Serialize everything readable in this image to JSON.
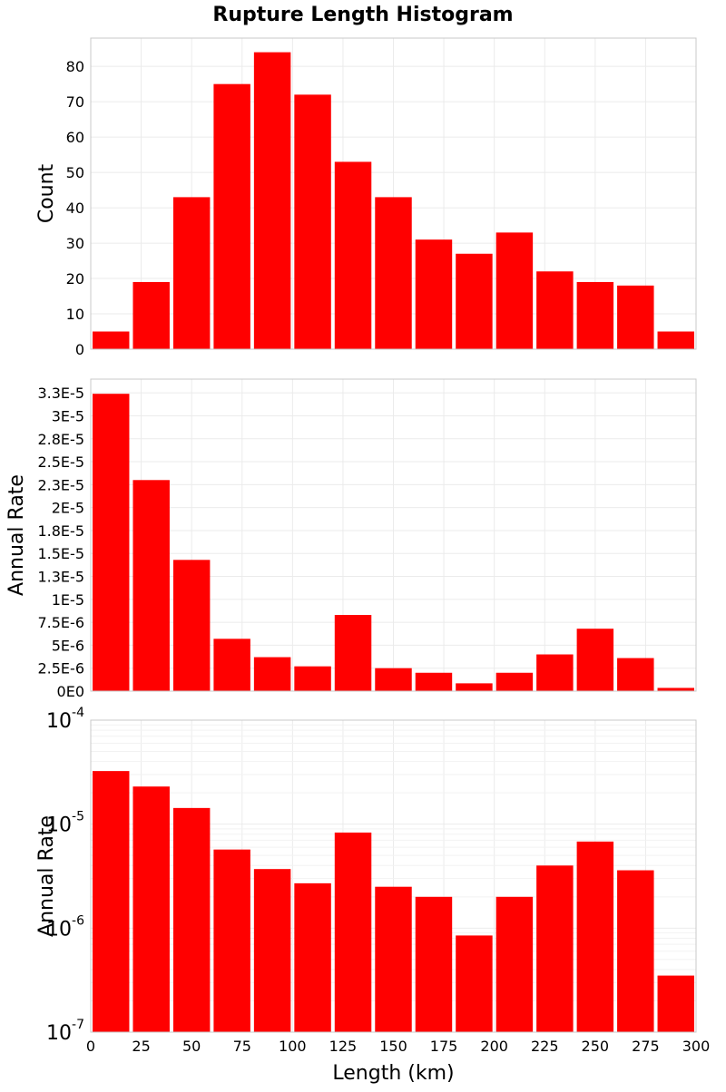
{
  "title": "Rupture Length Histogram",
  "colors": {
    "bar": "#ff0000",
    "frame": "#c8c8c8",
    "grid": "#ebebeb"
  },
  "chart_data": [
    {
      "type": "bar",
      "panel": "count",
      "title": "Rupture Length Histogram",
      "xlabel": "",
      "ylabel": "Count",
      "x": [
        10,
        30,
        50,
        70,
        90,
        110,
        130,
        150,
        170,
        190,
        210,
        230,
        250,
        270,
        290
      ],
      "bin_width": 20,
      "values": [
        5,
        19,
        43,
        75,
        84,
        72,
        53,
        43,
        31,
        27,
        33,
        22,
        19,
        18,
        5
      ],
      "xlim": [
        0,
        300
      ],
      "ylim": [
        0,
        88
      ],
      "scale": "linear",
      "yticks": [
        {
          "value": 0,
          "label": "0"
        },
        {
          "value": 10,
          "label": "10"
        },
        {
          "value": 20,
          "label": "20"
        },
        {
          "value": 30,
          "label": "30"
        },
        {
          "value": 40,
          "label": "40"
        },
        {
          "value": 50,
          "label": "50"
        },
        {
          "value": 60,
          "label": "60"
        },
        {
          "value": 70,
          "label": "70"
        },
        {
          "value": 80,
          "label": "80"
        }
      ],
      "grid": true
    },
    {
      "type": "bar",
      "panel": "rate-linear",
      "xlabel": "",
      "ylabel": "Annual Rate",
      "x": [
        10,
        30,
        50,
        70,
        90,
        110,
        130,
        150,
        170,
        190,
        210,
        230,
        250,
        270,
        290
      ],
      "bin_width": 20,
      "values": [
        3.24e-05,
        2.3e-05,
        1.43e-05,
        5.7e-06,
        3.7e-06,
        2.7e-06,
        8.3e-06,
        2.5e-06,
        2e-06,
        8.5e-07,
        2e-06,
        4e-06,
        6.8e-06,
        3.6e-06,
        3.5e-07
      ],
      "xlim": [
        0,
        300
      ],
      "ylim": [
        0,
        3.4e-05
      ],
      "scale": "linear",
      "yticks": [
        {
          "value": 0,
          "label": "0E0"
        },
        {
          "value": 2.5e-06,
          "label": "2.5E-6"
        },
        {
          "value": 5e-06,
          "label": "5E-6"
        },
        {
          "value": 7.5e-06,
          "label": "7.5E-6"
        },
        {
          "value": 1e-05,
          "label": "1E-5"
        },
        {
          "value": 1.25e-05,
          "label": "1.3E-5"
        },
        {
          "value": 1.5e-05,
          "label": "1.5E-5"
        },
        {
          "value": 1.75e-05,
          "label": "1.8E-5"
        },
        {
          "value": 2e-05,
          "label": "2E-5"
        },
        {
          "value": 2.25e-05,
          "label": "2.3E-5"
        },
        {
          "value": 2.5e-05,
          "label": "2.5E-5"
        },
        {
          "value": 2.75e-05,
          "label": "2.8E-5"
        },
        {
          "value": 3e-05,
          "label": "3E-5"
        },
        {
          "value": 3.25e-05,
          "label": "3.3E-5"
        }
      ],
      "grid": true
    },
    {
      "type": "bar",
      "panel": "rate-log",
      "xlabel": "Length (km)",
      "ylabel": "Annual Rate",
      "x": [
        10,
        30,
        50,
        70,
        90,
        110,
        130,
        150,
        170,
        190,
        210,
        230,
        250,
        270,
        290
      ],
      "bin_width": 20,
      "values": [
        3.24e-05,
        2.3e-05,
        1.43e-05,
        5.7e-06,
        3.7e-06,
        2.7e-06,
        8.3e-06,
        2.5e-06,
        2e-06,
        8.5e-07,
        2e-06,
        4e-06,
        6.8e-06,
        3.6e-06,
        3.5e-07
      ],
      "xlim": [
        0,
        300
      ],
      "ylim": [
        1e-07,
        0.0001
      ],
      "scale": "log",
      "yticks": [
        {
          "value": 1e-07,
          "base": "10",
          "exp": "-7"
        },
        {
          "value": 1e-06,
          "base": "10",
          "exp": "-6"
        },
        {
          "value": 1e-05,
          "base": "10",
          "exp": "-5"
        },
        {
          "value": 0.0001,
          "base": "10",
          "exp": "-4"
        }
      ],
      "xticks": [
        {
          "value": 0,
          "label": "0"
        },
        {
          "value": 25,
          "label": "25"
        },
        {
          "value": 50,
          "label": "50"
        },
        {
          "value": 75,
          "label": "75"
        },
        {
          "value": 100,
          "label": "100"
        },
        {
          "value": 125,
          "label": "125"
        },
        {
          "value": 150,
          "label": "150"
        },
        {
          "value": 175,
          "label": "175"
        },
        {
          "value": 200,
          "label": "200"
        },
        {
          "value": 225,
          "label": "225"
        },
        {
          "value": 250,
          "label": "250"
        },
        {
          "value": 275,
          "label": "275"
        },
        {
          "value": 300,
          "label": "300"
        }
      ],
      "grid": true
    }
  ]
}
